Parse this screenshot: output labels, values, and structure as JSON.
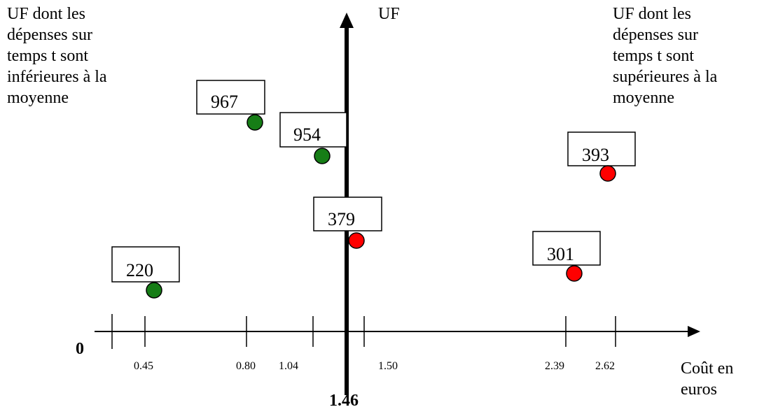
{
  "left_note": "UF dont les\ndépenses sur\ntemps t sont\ninférieures à la\nmoyenne",
  "right_note": "UF dont les\ndépenses sur\ntemps t sont\nsupérieures à la\nmoyenne",
  "y_axis_label": "UF",
  "x_axis_label": "Coût en\neuros",
  "origin_label": "0",
  "mean_label": "1.46",
  "ticks": [
    "0.45",
    "0.80",
    "1.04",
    "1.50",
    "2.39",
    "2.62"
  ],
  "points": [
    {
      "id": "220",
      "color": "#167d16"
    },
    {
      "id": "967",
      "color": "#167d16"
    },
    {
      "id": "954",
      "color": "#167d16"
    },
    {
      "id": "379",
      "color": "#ff0000"
    },
    {
      "id": "301",
      "color": "#ff0000"
    },
    {
      "id": "393",
      "color": "#ff0000"
    }
  ]
}
